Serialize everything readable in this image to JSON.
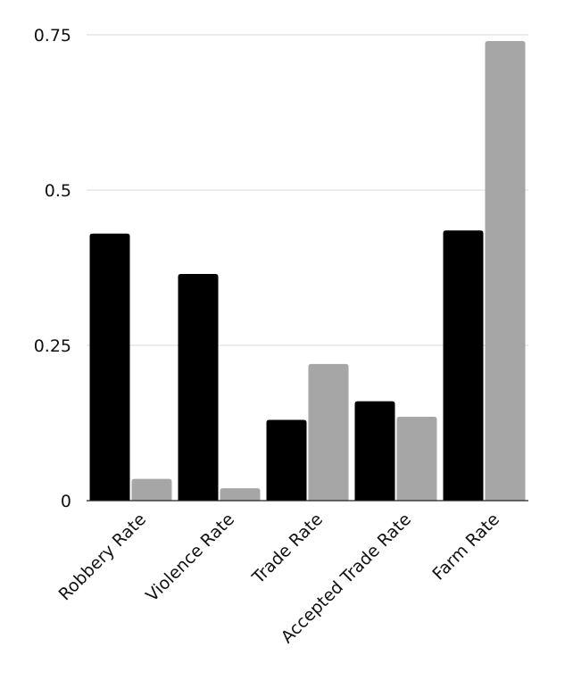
{
  "chart_data": {
    "type": "bar",
    "title": "",
    "xlabel": "",
    "ylabel": "",
    "ylim": [
      0,
      0.75
    ],
    "grid": true,
    "legend": "none",
    "y_ticks": [
      {
        "value": 0,
        "label": "0"
      },
      {
        "value": 0.25,
        "label": "0.25"
      },
      {
        "value": 0.5,
        "label": "0.5"
      },
      {
        "value": 0.75,
        "label": "0.75"
      }
    ],
    "categories": [
      "Robbery Rate",
      "Violence Rate",
      "Trade Rate",
      "Accepted Trade Rate",
      "Farm Rate"
    ],
    "series": [
      {
        "color": "#000000",
        "values": [
          0.43,
          0.365,
          0.13,
          0.16,
          0.435
        ]
      },
      {
        "color": "#a6a6a6",
        "values": [
          0.035,
          0.02,
          0.22,
          0.135,
          0.74
        ]
      }
    ]
  }
}
